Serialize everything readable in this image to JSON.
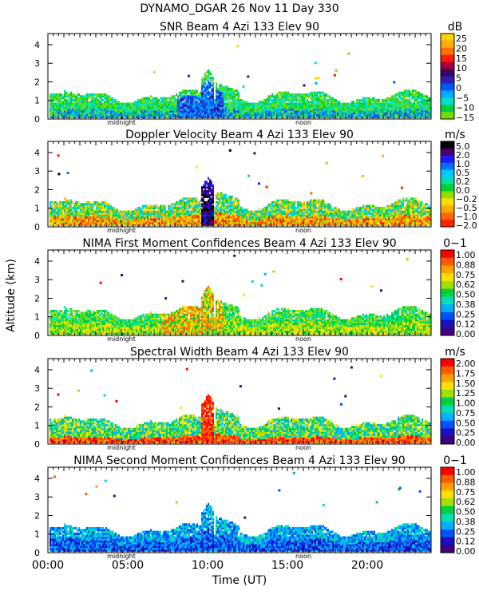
{
  "header": {
    "title": "DYNAMO_DGAR  26 Nov 11 Day 330"
  },
  "x_axis": {
    "label": "Time (UT)",
    "ticks": [
      "00:00",
      "05:00",
      "10:00",
      "15:00",
      "20:00"
    ],
    "tick_hours": [
      0,
      5,
      10,
      15,
      20
    ],
    "range_hours": [
      0,
      24
    ],
    "markers": [
      {
        "label": "midnight",
        "hour": 4.6
      },
      {
        "label": "noon",
        "hour": 16.0
      }
    ]
  },
  "y_axis": {
    "label": "Altitude (km)",
    "range_km": [
      0,
      4.6
    ],
    "ticks": [
      "0",
      "1",
      "2",
      "3",
      "4"
    ],
    "tick_values": [
      0,
      1,
      2,
      3,
      4
    ]
  },
  "chart_data": [
    {
      "type": "heatmap",
      "title": "SNR Beam 4 Azi 133 Elev 90",
      "unit": "dB",
      "colorbar": {
        "labels": [
          "25",
          "20",
          "15",
          "10",
          "5",
          "0",
          "−5",
          "−10",
          "−15"
        ],
        "colors": [
          "#ffd200",
          "#ffaa00",
          "#ff7000",
          "#ff1a00",
          "#a00040",
          "#3c0064",
          "#2a1fb0",
          "#0055ff",
          "#00a8ff",
          "#00e0d0",
          "#00d040",
          "#70e000"
        ]
      },
      "xlabel": "Time (UT)",
      "ylabel": "Altitude (km)"
    },
    {
      "type": "heatmap",
      "title": "Doppler Velocity Beam 4 Azi 133 Elev 90",
      "unit": "m/s",
      "colorbar": {
        "labels": [
          "5.0",
          "2.0",
          "1.0",
          "0.5",
          "0.2",
          "0.0",
          "−0.2",
          "−0.5",
          "−1.0",
          "−2.0"
        ],
        "colors": [
          "#000000",
          "#4a0070",
          "#1a1aff",
          "#0070ff",
          "#00c8ff",
          "#00e0b0",
          "#00d030",
          "#90e000",
          "#ffe000",
          "#ffaa00",
          "#ff6a00",
          "#ff2000"
        ]
      },
      "xlabel": "Time (UT)",
      "ylabel": "Altitude (km)"
    },
    {
      "type": "heatmap",
      "title": "NIMA First Moment Confidences Beam 4 Azi 133 Elev 90",
      "unit": "0−1",
      "colorbar": {
        "labels": [
          "1.00",
          "0.88",
          "0.75",
          "0.62",
          "0.50",
          "0.38",
          "0.25",
          "0.12",
          "0.00"
        ],
        "colors": [
          "#ff0000",
          "#ff5a00",
          "#ffa000",
          "#ffe000",
          "#a0e000",
          "#00d040",
          "#00e0b0",
          "#00b0ff",
          "#0050ff",
          "#1a10c0",
          "#400080"
        ]
      },
      "xlabel": "Time (UT)",
      "ylabel": "Altitude (km)"
    },
    {
      "type": "heatmap",
      "title": "Spectral Width Beam 4 Azi 133 Elev 90",
      "unit": "m/s",
      "colorbar": {
        "labels": [
          "2.00",
          "1.75",
          "1.50",
          "1.25",
          "1.00",
          "0.75",
          "0.50",
          "0.25",
          "0.00"
        ],
        "colors": [
          "#ff0000",
          "#ff5a00",
          "#ffa000",
          "#ffe000",
          "#a0e000",
          "#00d040",
          "#00e0b0",
          "#00b0ff",
          "#0050ff",
          "#1a10c0",
          "#400080"
        ]
      },
      "xlabel": "Time (UT)",
      "ylabel": "Altitude (km)"
    },
    {
      "type": "heatmap",
      "title": "NIMA Second Moment Confidences Beam 4 Azi 133 Elev 90",
      "unit": "0−1",
      "colorbar": {
        "labels": [
          "1.00",
          "0.88",
          "0.75",
          "0.62",
          "0.50",
          "0.38",
          "0.25",
          "0.12",
          "0.00"
        ],
        "colors": [
          "#ff0000",
          "#ff5a00",
          "#ffa000",
          "#ffe000",
          "#a0e000",
          "#00d040",
          "#00e0b0",
          "#00b0ff",
          "#0050ff",
          "#1a10c0",
          "#400080"
        ]
      },
      "xlabel": "Time (UT)",
      "ylabel": "Altitude (km)"
    }
  ]
}
